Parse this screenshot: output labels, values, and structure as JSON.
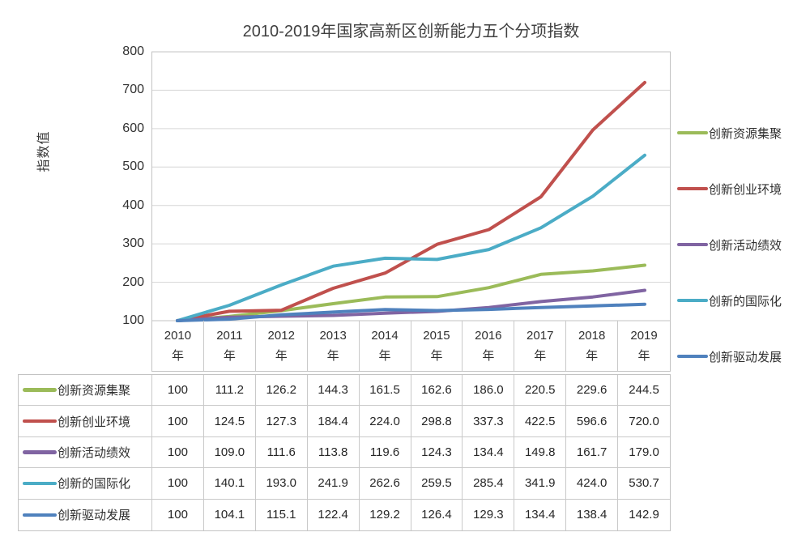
{
  "title": "2010-2019年国家高新区创新能力五个分项指数",
  "colors": {
    "grid": "#d6d6d6",
    "axis_border": "#c3c3c3",
    "title_text": "#404040",
    "text": "#303030",
    "series_green": "#9BBB59",
    "series_red": "#C0504D",
    "series_purple": "#8064A2",
    "series_cyan": "#4BACC6",
    "series_blue": "#4F81BD"
  },
  "chart_data": {
    "type": "line",
    "title": "2010-2019年国家高新区创新能力五个分项指数",
    "xlabel": "",
    "ylabel": "指数值",
    "ylim": [
      100,
      800
    ],
    "yticks": [
      800,
      700,
      600,
      500,
      400,
      300,
      200,
      100
    ],
    "grid": true,
    "legend_position": "right",
    "categories": [
      "2010",
      "2011",
      "2012",
      "2013",
      "2014",
      "2015",
      "2016",
      "2017",
      "2018",
      "2019"
    ],
    "category_suffix": "年",
    "series": [
      {
        "name": "创新资源集聚",
        "color": "#9BBB59",
        "values": [
          100,
          111.2,
          126.2,
          144.3,
          161.5,
          162.6,
          186.0,
          220.5,
          229.6,
          244.5
        ]
      },
      {
        "name": "创新创业环境",
        "color": "#C0504D",
        "values": [
          100,
          124.5,
          127.3,
          184.4,
          224.0,
          298.8,
          337.3,
          422.5,
          596.6,
          720.0
        ]
      },
      {
        "name": "创新活动绩效",
        "color": "#8064A2",
        "values": [
          100,
          109.0,
          111.6,
          113.8,
          119.6,
          124.3,
          134.4,
          149.8,
          161.7,
          179.0
        ]
      },
      {
        "name": "创新的国际化",
        "color": "#4BACC6",
        "values": [
          100,
          140.1,
          193.0,
          241.9,
          262.6,
          259.5,
          285.4,
          341.9,
          424.0,
          530.7
        ]
      },
      {
        "name": "创新驱动发展",
        "color": "#4F81BD",
        "values": [
          100,
          104.1,
          115.1,
          122.4,
          129.2,
          126.4,
          129.3,
          134.4,
          138.4,
          142.9
        ]
      }
    ]
  }
}
